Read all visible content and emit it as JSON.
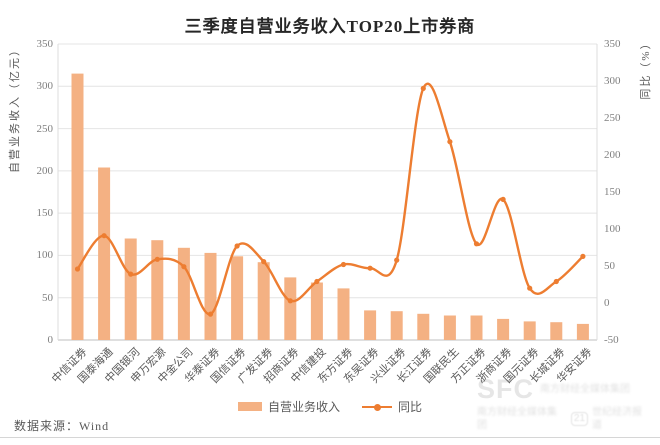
{
  "title": "三季度自营业务收入TOP20上市券商",
  "source_note": "数据来源：Wind",
  "watermark": {
    "logo_text": "SFC",
    "line1": "南方财经全媒体集团",
    "line2_left": "南方财经全媒体集团",
    "badge": "21",
    "line2_right": "世纪经济报道"
  },
  "chart_data": {
    "type": "combo-bar-line",
    "categories": [
      "中信证券",
      "国泰海通",
      "中国银河",
      "申万宏源",
      "中金公司",
      "华泰证券",
      "国信证券",
      "广发证券",
      "招商证券",
      "中信建投",
      "东方证券",
      "东吴证券",
      "兴业证券",
      "长江证券",
      "国联民生",
      "方正证券",
      "浙商证券",
      "国元证券",
      "长城证券",
      "华安证券"
    ],
    "series": [
      {
        "name": "自营业务收入",
        "type": "bar",
        "axis": "left",
        "unit": "亿元",
        "color": "#F4B183",
        "values": [
          315,
          204,
          120,
          118,
          109,
          103,
          99,
          92,
          74,
          68,
          61,
          35,
          34,
          31,
          29,
          29,
          25,
          22,
          21,
          19
        ]
      },
      {
        "name": "同比",
        "type": "line",
        "axis": "right",
        "unit": "%",
        "color": "#ED7D31",
        "values": [
          46,
          91,
          39,
          59,
          49,
          -15,
          77,
          56,
          3,
          29,
          52,
          47,
          58,
          290,
          218,
          80,
          140,
          20,
          29,
          63
        ]
      }
    ],
    "left_axis": {
      "title": "自营业务收入（亿元）",
      "min": 0,
      "max": 350,
      "step": 50
    },
    "right_axis": {
      "title": "同比（%）",
      "min": -50,
      "max": 350,
      "step": 50
    },
    "grid": true,
    "legend_position": "bottom"
  }
}
